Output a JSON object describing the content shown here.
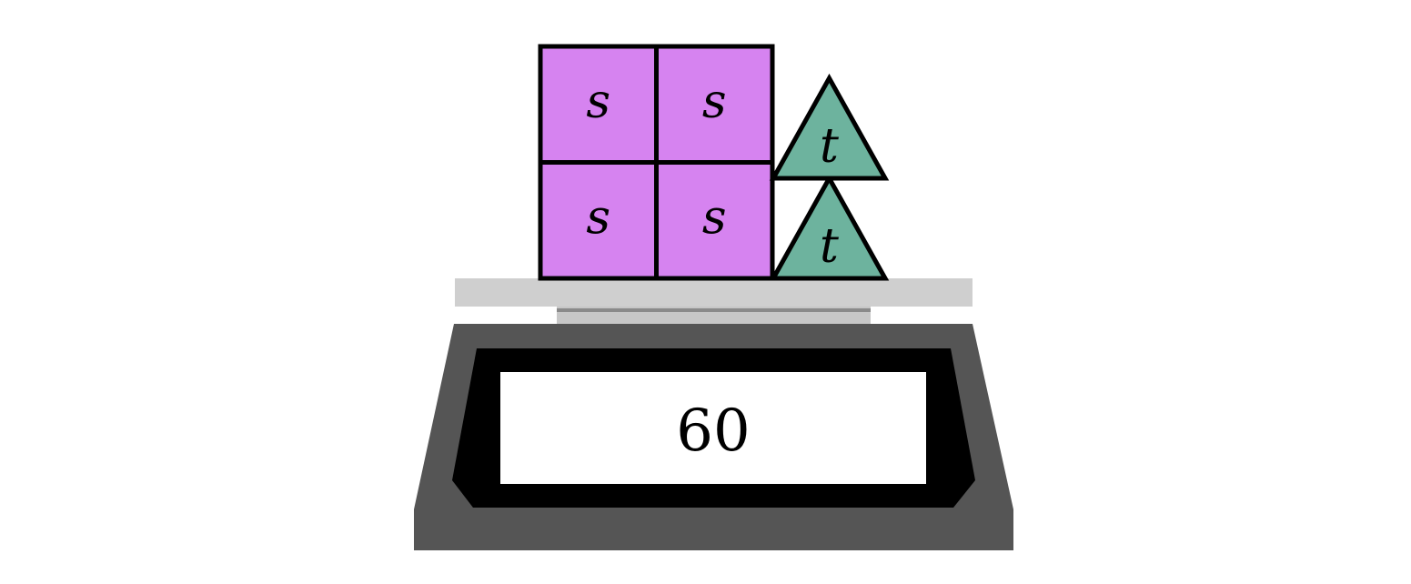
{
  "colors": {
    "square_fill": "#d683f0",
    "triangle_fill": "#6db39e",
    "outline": "#000000",
    "platform": "#cfcfcf",
    "platform_neck": "#c7c7c7",
    "neck_line": "#8a8a8a",
    "scale_body": "#555555",
    "bezel": "#000000",
    "display_bg": "#ffffff"
  },
  "squares": [
    {
      "label": "s"
    },
    {
      "label": "s"
    },
    {
      "label": "s"
    },
    {
      "label": "s"
    }
  ],
  "triangles": [
    {
      "label": "t"
    },
    {
      "label": "t"
    }
  ],
  "scale": {
    "reading": "60"
  }
}
